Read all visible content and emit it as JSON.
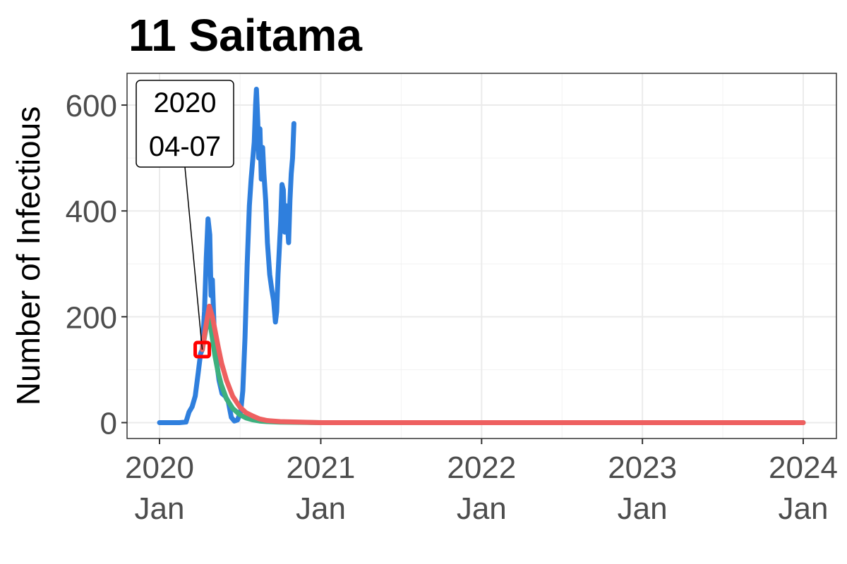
{
  "chart_data": {
    "type": "line",
    "title": "11 Saitama",
    "xlabel": "",
    "ylabel": "Number of Infectious",
    "x_range": [
      "2020-01-01",
      "2024-01-01"
    ],
    "ylim": [
      -30,
      660
    ],
    "y_ticks": [
      0,
      200,
      400,
      600
    ],
    "x_ticks": [
      {
        "date": "2020-01-01",
        "year": "2020",
        "month": "Jan"
      },
      {
        "date": "2021-01-01",
        "year": "2021",
        "month": "Jan"
      },
      {
        "date": "2022-01-01",
        "year": "2022",
        "month": "Jan"
      },
      {
        "date": "2023-01-01",
        "year": "2023",
        "month": "Jan"
      },
      {
        "date": "2024-01-01",
        "year": "2024",
        "month": "Jan"
      }
    ],
    "grid": true,
    "legend": "none",
    "series": [
      {
        "color": "#2F7FDD",
        "points": [
          [
            "2020-01-01",
            0
          ],
          [
            "2020-02-15",
            0
          ],
          [
            "2020-03-01",
            1
          ],
          [
            "2020-03-08",
            20
          ],
          [
            "2020-03-15",
            30
          ],
          [
            "2020-03-22",
            50
          ],
          [
            "2020-03-29",
            95
          ],
          [
            "2020-04-03",
            130
          ],
          [
            "2020-04-07",
            138
          ],
          [
            "2020-04-12",
            210
          ],
          [
            "2020-04-16",
            310
          ],
          [
            "2020-04-20",
            385
          ],
          [
            "2020-04-24",
            355
          ],
          [
            "2020-04-27",
            240
          ],
          [
            "2020-04-30",
            270
          ],
          [
            "2020-05-04",
            175
          ],
          [
            "2020-05-09",
            120
          ],
          [
            "2020-05-15",
            80
          ],
          [
            "2020-05-22",
            55
          ],
          [
            "2020-05-29",
            50
          ],
          [
            "2020-06-05",
            40
          ],
          [
            "2020-06-12",
            10
          ],
          [
            "2020-06-19",
            3
          ],
          [
            "2020-06-26",
            5
          ],
          [
            "2020-07-03",
            20
          ],
          [
            "2020-07-08",
            60
          ],
          [
            "2020-07-13",
            160
          ],
          [
            "2020-07-18",
            300
          ],
          [
            "2020-07-23",
            410
          ],
          [
            "2020-07-27",
            460
          ],
          [
            "2020-07-31",
            500
          ],
          [
            "2020-08-03",
            530
          ],
          [
            "2020-08-06",
            600
          ],
          [
            "2020-08-08",
            630
          ],
          [
            "2020-08-11",
            570
          ],
          [
            "2020-08-13",
            500
          ],
          [
            "2020-08-16",
            555
          ],
          [
            "2020-08-19",
            460
          ],
          [
            "2020-08-22",
            520
          ],
          [
            "2020-08-25",
            470
          ],
          [
            "2020-08-29",
            420
          ],
          [
            "2020-09-02",
            340
          ],
          [
            "2020-09-07",
            280
          ],
          [
            "2020-09-12",
            250
          ],
          [
            "2020-09-16",
            230
          ],
          [
            "2020-09-20",
            190
          ],
          [
            "2020-09-23",
            210
          ],
          [
            "2020-09-26",
            280
          ],
          [
            "2020-09-29",
            330
          ],
          [
            "2020-10-02",
            380
          ],
          [
            "2020-10-05",
            450
          ],
          [
            "2020-10-08",
            440
          ],
          [
            "2020-10-11",
            360
          ],
          [
            "2020-10-14",
            410
          ],
          [
            "2020-10-17",
            380
          ],
          [
            "2020-10-20",
            340
          ],
          [
            "2020-10-23",
            420
          ],
          [
            "2020-10-26",
            470
          ],
          [
            "2020-10-29",
            500
          ],
          [
            "2020-11-01",
            565
          ]
        ]
      },
      {
        "color": "#3DB07E",
        "points": [
          [
            "2020-04-07",
            138
          ],
          [
            "2020-04-15",
            175
          ],
          [
            "2020-04-22",
            205
          ],
          [
            "2020-04-29",
            165
          ],
          [
            "2020-05-06",
            125
          ],
          [
            "2020-05-13",
            95
          ],
          [
            "2020-05-20",
            72
          ],
          [
            "2020-06-01",
            45
          ],
          [
            "2020-06-15",
            27
          ],
          [
            "2020-07-01",
            15
          ],
          [
            "2020-07-15",
            9
          ],
          [
            "2020-08-01",
            5
          ],
          [
            "2020-08-15",
            3
          ],
          [
            "2020-09-01",
            2
          ],
          [
            "2020-10-01",
            1
          ],
          [
            "2021-01-01",
            0
          ],
          [
            "2024-01-01",
            0
          ]
        ]
      },
      {
        "color": "#EE6060",
        "points": [
          [
            "2020-04-07",
            138
          ],
          [
            "2020-04-15",
            180
          ],
          [
            "2020-04-23",
            220
          ],
          [
            "2020-04-30",
            200
          ],
          [
            "2020-05-07",
            170
          ],
          [
            "2020-05-14",
            140
          ],
          [
            "2020-05-21",
            112
          ],
          [
            "2020-06-01",
            80
          ],
          [
            "2020-06-15",
            50
          ],
          [
            "2020-07-01",
            30
          ],
          [
            "2020-07-15",
            19
          ],
          [
            "2020-08-01",
            12
          ],
          [
            "2020-08-15",
            7
          ],
          [
            "2020-09-01",
            4
          ],
          [
            "2020-10-01",
            2
          ],
          [
            "2021-01-01",
            0
          ],
          [
            "2024-01-01",
            0
          ]
        ]
      }
    ],
    "annotation": {
      "date": "2020-04-07",
      "value": 138,
      "lines": [
        "2020",
        "04-07"
      ],
      "marker_color": "#FF0000"
    }
  }
}
